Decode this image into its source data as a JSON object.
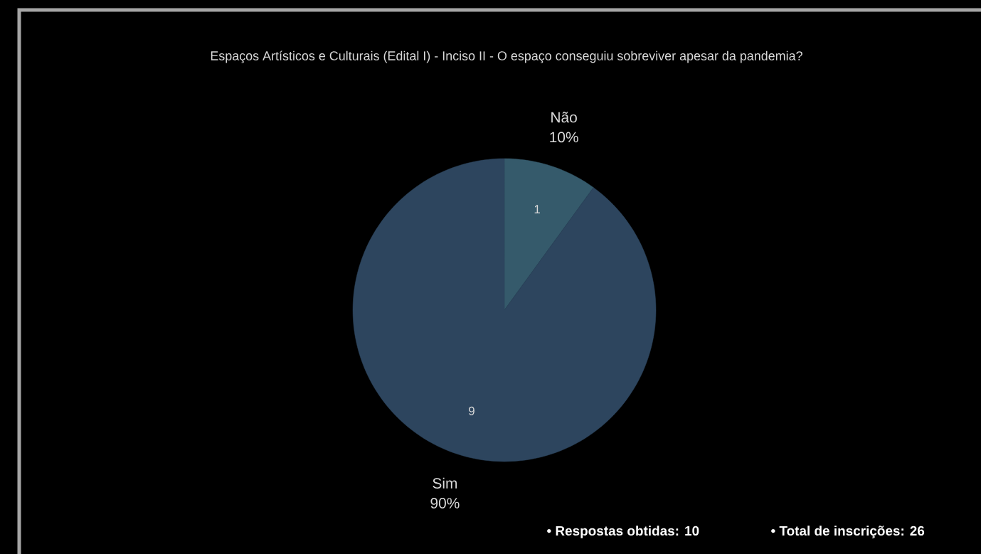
{
  "chart_data": {
    "type": "pie",
    "title": "Espaços Artísticos e Culturais (Edital I)  - Inciso II - O espaço conseguiu sobreviver apesar da pandemia?",
    "categories": [
      "Não",
      "Sim"
    ],
    "values": [
      10,
      90
    ],
    "colors": [
      "#355a6b",
      "#2d455e"
    ],
    "value_labels": [
      "10%",
      "90%"
    ],
    "annotations": [
      "1",
      "9",
      "• Respostas obtidas: 10",
      "• Total de inscrições: 26"
    ]
  }
}
